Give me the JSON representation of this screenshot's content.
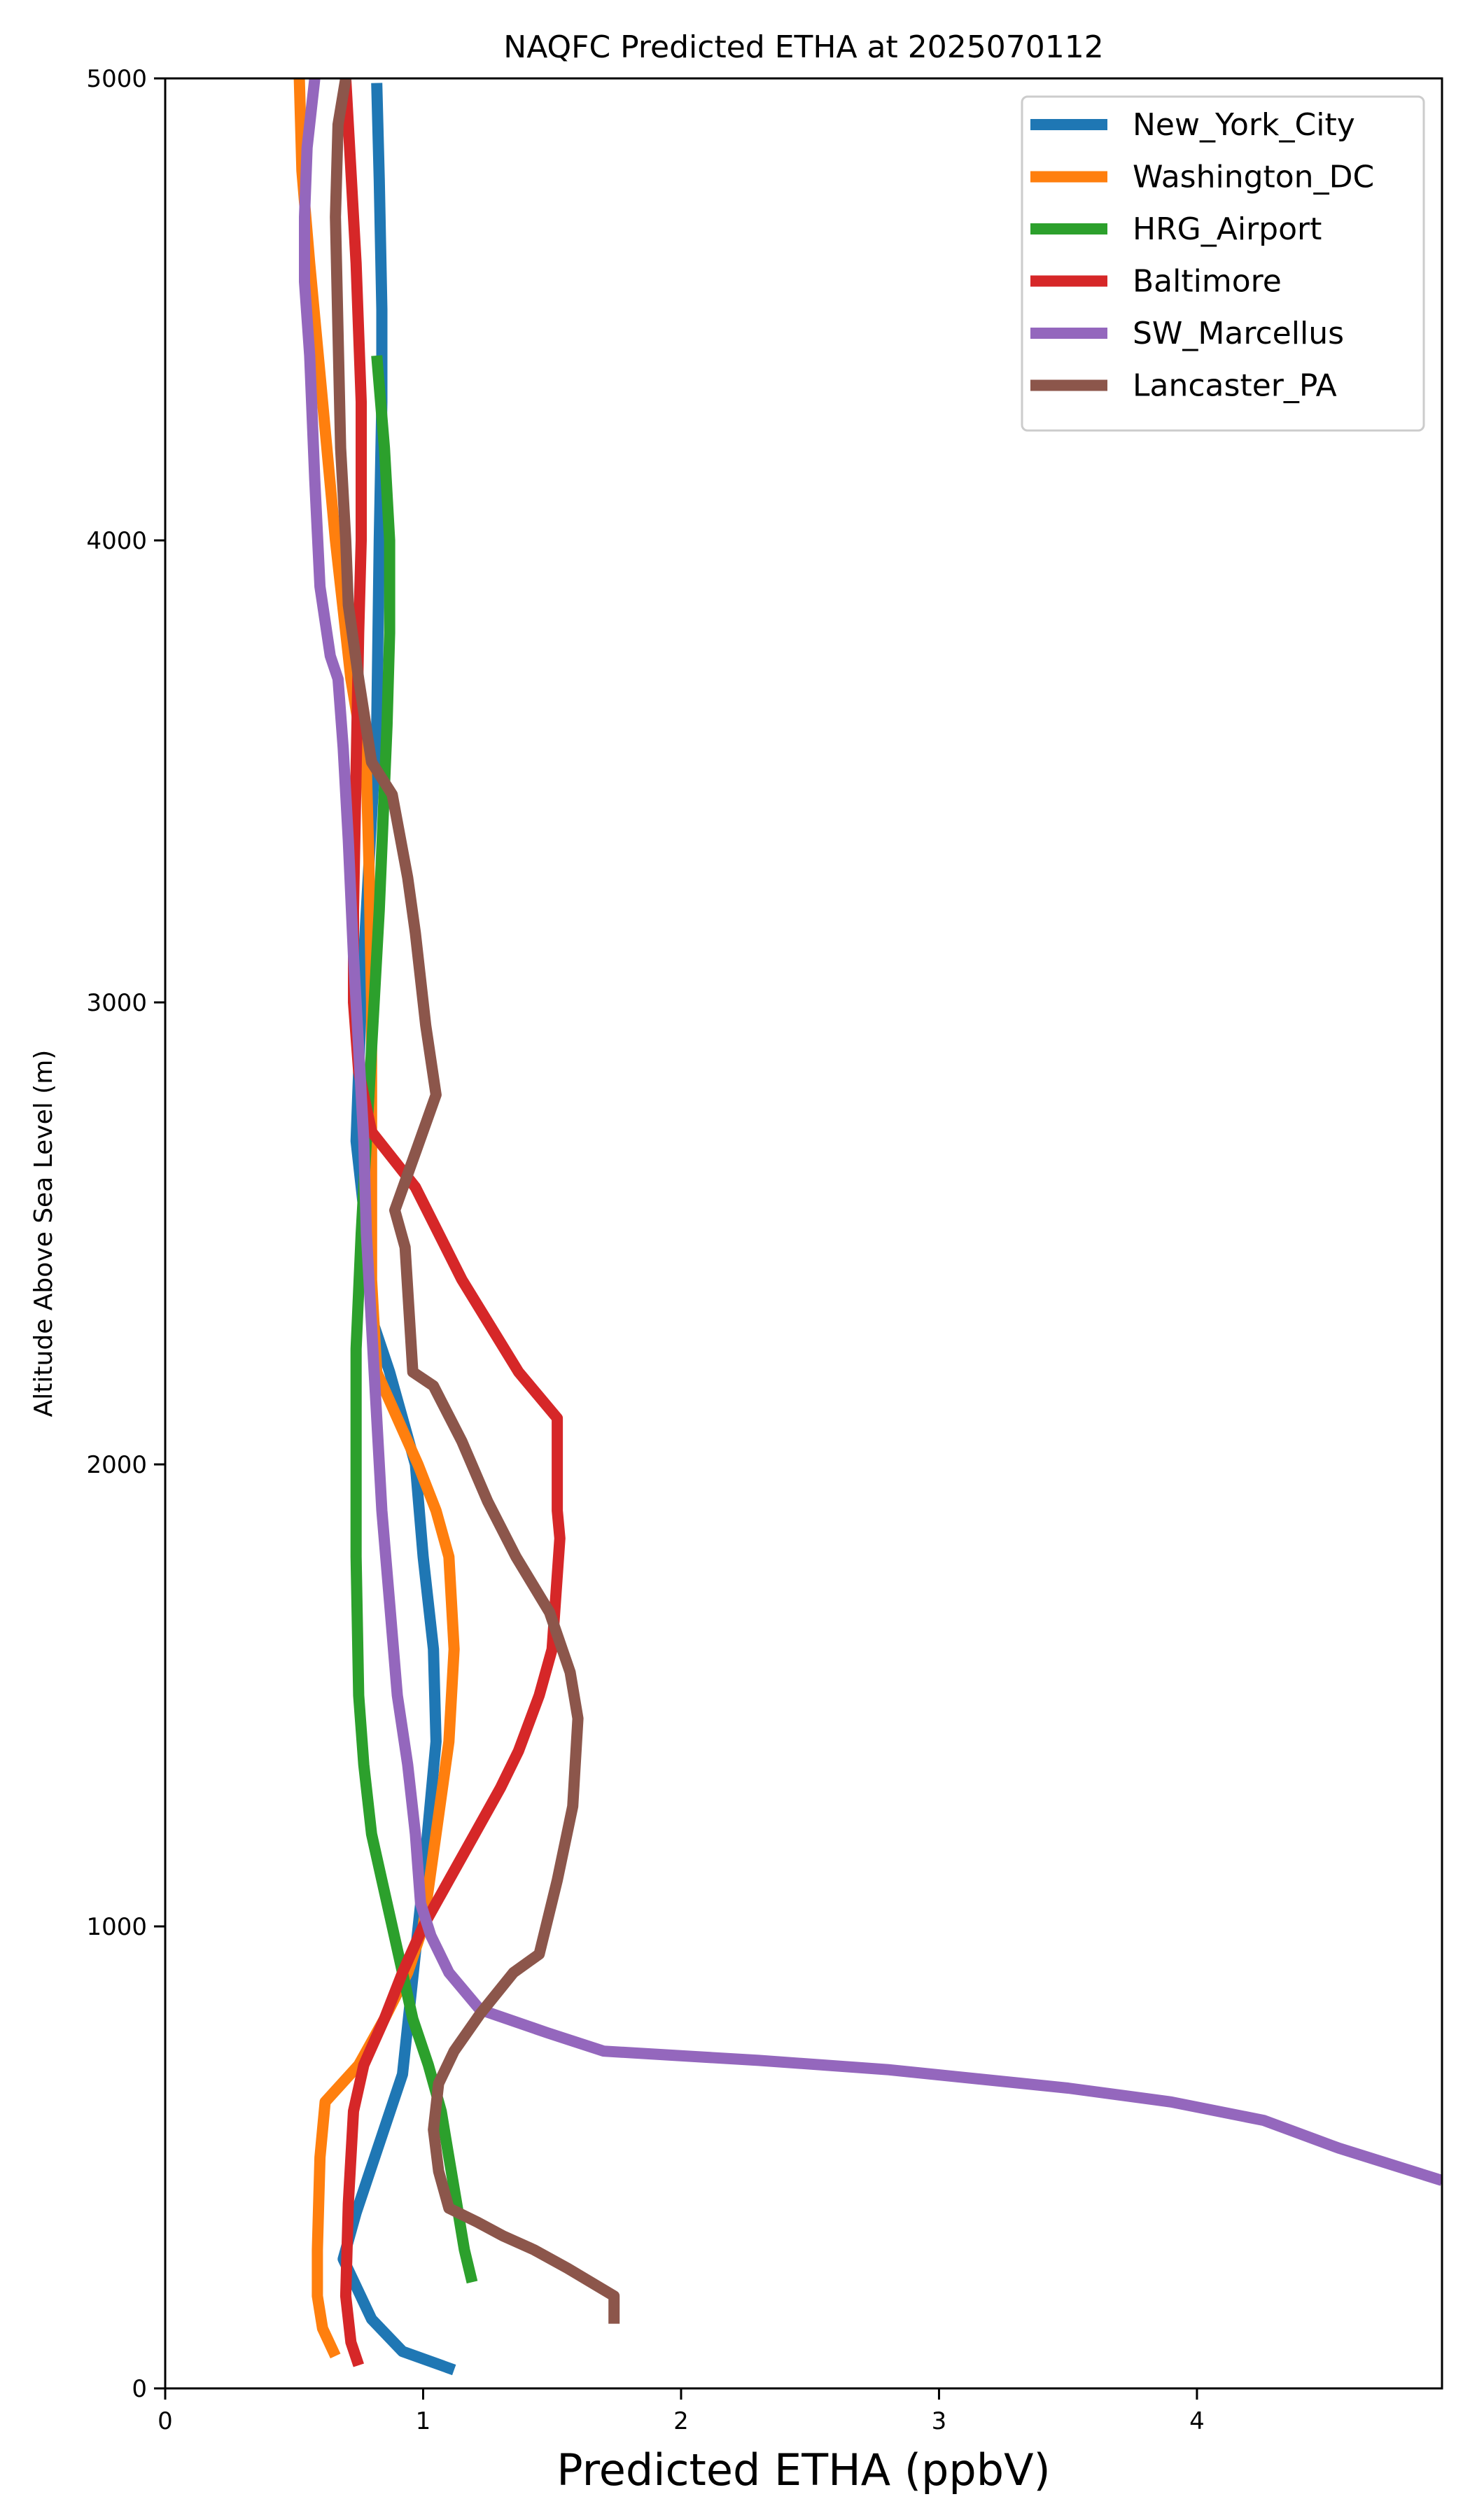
{
  "chart_data": {
    "type": "line",
    "title": "NAQFC Predicted ETHA at 2025070112",
    "xlabel": "Predicted ETHA (ppbV)",
    "ylabel": "Altitude Above Sea Level (m)",
    "xlim": [
      0,
      4.95
    ],
    "ylim": [
      0,
      5000
    ],
    "xticks": [
      "0",
      "1",
      "2",
      "3",
      "4"
    ],
    "yticks": [
      "0",
      "1000",
      "2000",
      "3000",
      "4000",
      "5000"
    ],
    "legend_position": "top-right",
    "grid": false,
    "series": [
      {
        "name": "New_York_City",
        "color": "#1f77b4",
        "x": [
          1.12,
          0.92,
          0.8,
          0.69,
          0.74,
          0.8,
          0.86,
          0.92,
          1.0,
          1.05,
          1.04,
          1.0,
          0.97,
          0.92,
          0.87,
          0.81,
          0.78,
          0.74,
          0.76,
          0.78,
          0.8,
          0.82,
          0.83,
          0.84,
          0.84,
          0.83,
          0.82
        ],
        "y": [
          40,
          80,
          150,
          280,
          380,
          480,
          580,
          680,
          1100,
          1400,
          1600,
          1800,
          2000,
          2100,
          2200,
          2300,
          2500,
          2700,
          3000,
          3200,
          3400,
          3600,
          4000,
          4300,
          4500,
          4780,
          4990
        ]
      },
      {
        "name": "Washington_DC",
        "color": "#ff7f0e",
        "x": [
          0.66,
          0.61,
          0.59,
          0.59,
          0.6,
          0.62,
          0.75,
          0.85,
          0.94,
          1.0,
          1.05,
          1.1,
          1.12,
          1.1,
          1.05,
          0.98,
          0.9,
          0.82,
          0.8,
          0.8,
          0.8,
          0.79,
          0.78,
          0.72,
          0.66,
          0.61,
          0.56,
          0.53,
          0.52
        ],
        "y": [
          70,
          130,
          200,
          300,
          500,
          620,
          700,
          800,
          900,
          1000,
          1200,
          1400,
          1600,
          1800,
          1900,
          2000,
          2100,
          2200,
          2400,
          2700,
          3000,
          3300,
          3500,
          3700,
          4000,
          4300,
          4600,
          4800,
          5000
        ]
      },
      {
        "name": "HRG_Airport",
        "color": "#2ca02c",
        "x": [
          1.19,
          1.16,
          1.13,
          1.1,
          1.07,
          1.02,
          0.96,
          0.88,
          0.84,
          0.8,
          0.77,
          0.75,
          0.74,
          0.74,
          0.74,
          0.76,
          0.79,
          0.81,
          0.83,
          0.86,
          0.87,
          0.87,
          0.85,
          0.82
        ],
        "y": [
          230,
          300,
          400,
          500,
          600,
          700,
          800,
          1000,
          1100,
          1200,
          1350,
          1500,
          1800,
          2000,
          2250,
          2500,
          2800,
          3000,
          3200,
          3600,
          3800,
          4000,
          4200,
          4400
        ]
      },
      {
        "name": "Baltimore",
        "color": "#d62728",
        "x": [
          0.75,
          0.72,
          0.7,
          0.71,
          0.73,
          0.77,
          0.85,
          0.92,
          1.0,
          1.1,
          1.2,
          1.3,
          1.37,
          1.45,
          1.5,
          1.53,
          1.52,
          1.52,
          1.37,
          1.15,
          0.97,
          0.8,
          0.75,
          0.73,
          0.73,
          0.74,
          0.75,
          0.76,
          0.76,
          0.74,
          0.72,
          0.7
        ],
        "y": [
          50,
          100,
          200,
          400,
          600,
          700,
          800,
          900,
          1000,
          1100,
          1200,
          1300,
          1380,
          1500,
          1600,
          1840,
          1900,
          2100,
          2200,
          2400,
          2600,
          2720,
          2850,
          3000,
          3200,
          3500,
          3800,
          4000,
          4300,
          4600,
          4800,
          5000
        ]
      },
      {
        "name": "SW_Marcellus",
        "color": "#9467bd",
        "x": [
          4.95,
          4.55,
          4.26,
          3.9,
          3.5,
          2.8,
          2.3,
          1.7,
          1.48,
          1.22,
          1.1,
          1.03,
          0.99,
          0.97,
          0.94,
          0.9,
          0.87,
          0.84,
          0.82,
          0.8,
          0.78,
          0.77,
          0.75,
          0.73,
          0.71,
          0.69,
          0.67,
          0.64,
          0.6,
          0.58,
          0.56,
          0.54,
          0.54,
          0.55,
          0.57,
          0.58
        ],
        "y": [
          450,
          520,
          580,
          620,
          650,
          690,
          710,
          730,
          770,
          820,
          900,
          980,
          1050,
          1200,
          1350,
          1500,
          1700,
          1900,
          2100,
          2300,
          2500,
          2700,
          2900,
          3100,
          3350,
          3550,
          3700,
          3750,
          3900,
          4130,
          4400,
          4560,
          4700,
          4850,
          4950,
          5000
        ]
      },
      {
        "name": "Lancaster_PA",
        "color": "#8c564b",
        "x": [
          1.74,
          1.74,
          1.56,
          1.43,
          1.31,
          1.21,
          1.1,
          1.06,
          1.04,
          1.06,
          1.12,
          1.22,
          1.35,
          1.45,
          1.52,
          1.58,
          1.6,
          1.57,
          1.49,
          1.36,
          1.25,
          1.15,
          1.04,
          0.96,
          0.93,
          0.89,
          0.98,
          1.05,
          1.01,
          0.97,
          0.94,
          0.88,
          0.8,
          0.75,
          0.71,
          0.7,
          0.68,
          0.66,
          0.67,
          0.7
        ],
        "y": [
          140,
          200,
          260,
          300,
          330,
          360,
          390,
          470,
          560,
          660,
          730,
          810,
          900,
          940,
          1100,
          1260,
          1450,
          1550,
          1680,
          1800,
          1920,
          2050,
          2170,
          2200,
          2470,
          2550,
          2690,
          2800,
          2950,
          3150,
          3270,
          3450,
          3520,
          3700,
          3860,
          4000,
          4200,
          4700,
          4900,
          5000
        ]
      }
    ]
  }
}
